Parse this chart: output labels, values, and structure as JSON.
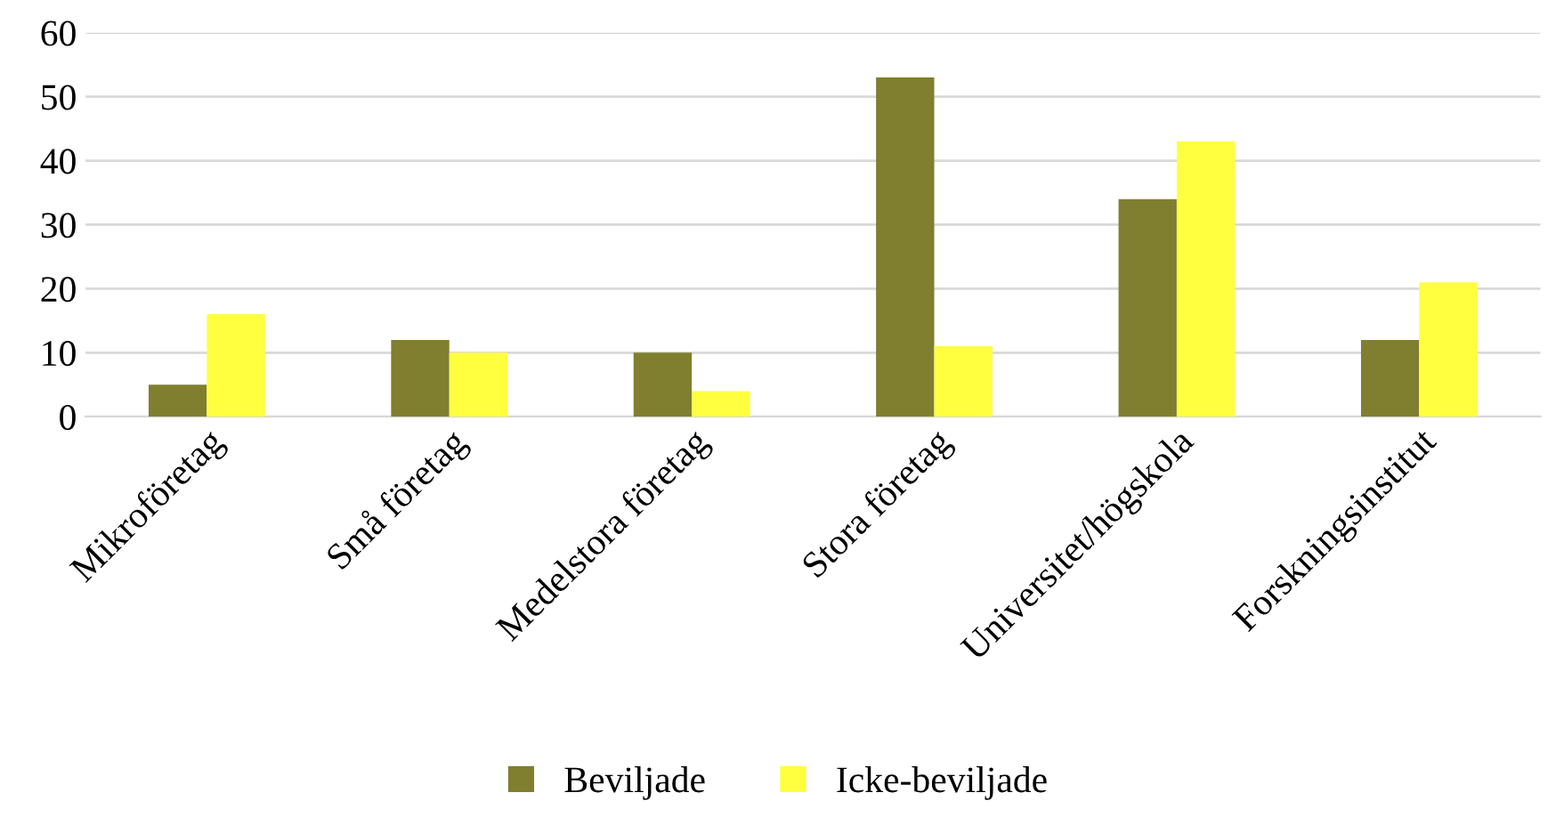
{
  "chart_data": {
    "type": "bar",
    "categories": [
      "Mikroföretag",
      "Små företag",
      "Medelstora företag",
      "Stora företag",
      "Universitet/högskola",
      "Forskningsinstitut"
    ],
    "series": [
      {
        "name": "Beviljade",
        "color": "#7f7f2f",
        "values": [
          5,
          12,
          10,
          53,
          34,
          12
        ]
      },
      {
        "name": "Icke-beviljade",
        "color": "#ffff3f",
        "values": [
          16,
          10,
          4,
          11,
          43,
          21
        ]
      }
    ],
    "ylim": [
      0,
      60
    ],
    "yticks": [
      0,
      10,
      20,
      30,
      40,
      50,
      60
    ],
    "grid": "y",
    "legend": "bottom"
  }
}
